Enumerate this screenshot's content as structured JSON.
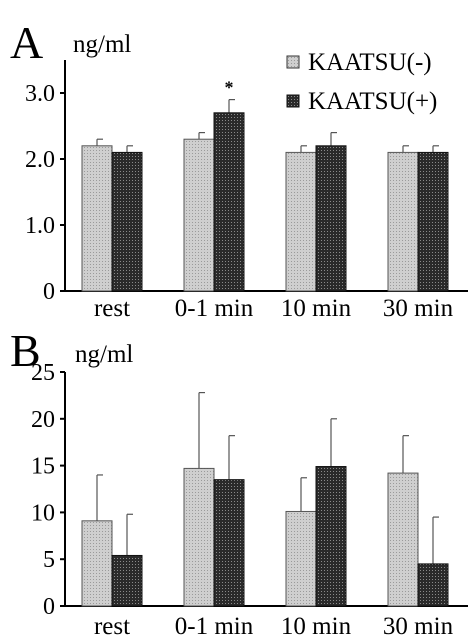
{
  "chart_data": [
    {
      "type": "bar",
      "panel_label": "A",
      "ylabel": "ng/ml",
      "categories": [
        "rest",
        "0-1 min",
        "10 min",
        "30 min"
      ],
      "yticks": [
        "0",
        "1.0",
        "2.0",
        "3.0"
      ],
      "ylim": [
        0,
        3.5
      ],
      "legend": {
        "placement": "top-right"
      },
      "series": [
        {
          "name": "KAATSU(-)",
          "color": "#c8c8c8",
          "pattern": "light-dots",
          "values": [
            2.2,
            2.3,
            2.1,
            2.1
          ],
          "errors": [
            0.1,
            0.1,
            0.1,
            0.1
          ]
        },
        {
          "name": "KAATSU(+)",
          "color": "#333333",
          "pattern": "dark-dots",
          "values": [
            2.1,
            2.7,
            2.2,
            2.1
          ],
          "errors": [
            0.1,
            0.2,
            0.2,
            0.1
          ]
        }
      ],
      "annotations": [
        {
          "text": "*",
          "category": "0-1 min",
          "series": "KAATSU(+)"
        }
      ]
    },
    {
      "type": "bar",
      "panel_label": "B",
      "ylabel": "ng/ml",
      "categories": [
        "rest",
        "0-1 min",
        "10 min",
        "30 min"
      ],
      "yticks": [
        "0",
        "5",
        "10",
        "15",
        "20",
        "25"
      ],
      "ylim": [
        0,
        25
      ],
      "series": [
        {
          "name": "KAATSU(-)",
          "color": "#c8c8c8",
          "pattern": "light-dots",
          "values": [
            9.1,
            14.7,
            10.1,
            14.2
          ],
          "errors": [
            4.9,
            8.1,
            3.6,
            4.0
          ]
        },
        {
          "name": "KAATSU(+)",
          "color": "#333333",
          "pattern": "dark-dots",
          "values": [
            5.4,
            13.5,
            14.9,
            4.5
          ],
          "errors": [
            4.4,
            4.7,
            5.1,
            5.0
          ]
        }
      ]
    }
  ]
}
